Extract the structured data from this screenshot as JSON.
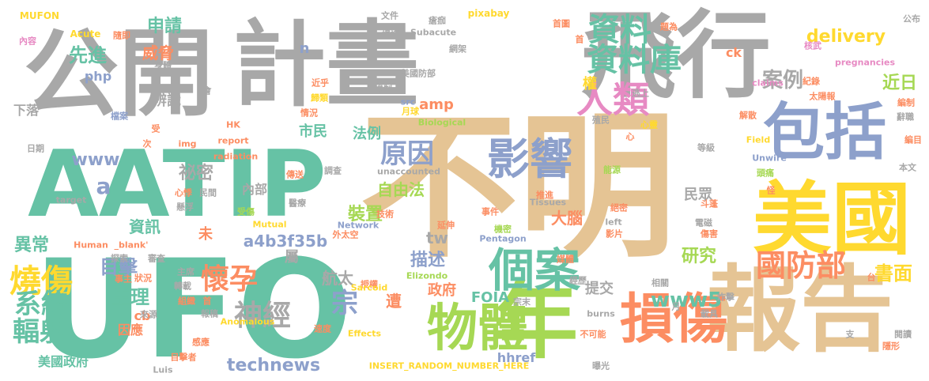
{
  "colors": {
    "gray": "#a8a8a8",
    "teal": "#66c2a5",
    "tan": "#e5c494",
    "lime": "#a6d854",
    "orange": "#fc8d62",
    "yellow": "#ffd92f",
    "blue": "#8da0cb",
    "pink": "#e78ac3"
  },
  "words": [
    "公開",
    "計畫",
    "飛行",
    "不明",
    "UFO",
    "AATIP",
    "美國",
    "報告",
    "年",
    "物體",
    "損傷",
    "包括",
    "個案",
    "影響",
    "資料",
    "資料庫",
    "人類",
    "國防部",
    "燒傷",
    "懷孕",
    "系統",
    "輻射",
    "原因",
    "宗",
    "神經",
    "www5",
    "technews",
    "目擊",
    "生理",
    "案例",
    "書面",
    "先進",
    "威脅",
    "申請",
    "delivery",
    "近日",
    "研究",
    "描述",
    "裝置",
    "祕密",
    "異常",
    "資訊",
    "航太",
    "自由法",
    "法例",
    "市民",
    "a4b3f35b",
    "FOIA",
    "提交",
    "大腦",
    "政府",
    "遭",
    "內部",
    "民眾",
    "美國政府",
    "因應",
    "權",
    "amp",
    "php",
    "辨識",
    "下落",
    "www",
    "a",
    "n",
    "tw",
    "hhref",
    "cb",
    "ck",
    "未",
    "屬",
    "MUFON",
    "內容",
    "Acute",
    "隨即",
    "身體",
    "受",
    "日期",
    "檔案",
    "文件",
    "提議",
    "Subacute",
    "pixabay",
    "首圖",
    "題為",
    "公布",
    "核武",
    "機制",
    "網架",
    "美國防部",
    "歸類",
    "近乎",
    "src",
    "情況",
    "月球",
    "Biological",
    "殖民",
    "逃上",
    "太陽報",
    "紀錄",
    "claims",
    "pregnancies",
    "編制",
    "辭職",
    "編目",
    "解散",
    "心靈",
    "img",
    "HK",
    "次",
    "report",
    "radiation",
    "傳送",
    "調查",
    "unaccounted",
    "等級",
    "Field",
    "Unwire",
    "本文",
    "頭痛",
    "怪",
    "斗蓬",
    "能源",
    "絕密",
    "left",
    "影片",
    "電磁",
    "傷害",
    "相關",
    "台",
    "經歷",
    "主席",
    "轉載",
    "報稿",
    "組織",
    "來源",
    "目擊者",
    "Luis",
    "感應",
    "事主",
    "狀況",
    "探索",
    "審查",
    "Human",
    "_blank'",
    "Mutual",
    "Network",
    "醫療",
    "技術",
    "推進",
    "Tissues",
    "機密",
    "Pentagon",
    "延伸",
    "外太空",
    "Elizondo",
    "媒體",
    "宗末",
    "burns",
    "Anomalous",
    "Effects",
    "速度",
    "INSERT_RANDOM_NUMBER_HERE",
    "不可能",
    "曝光",
    "載具",
    "炸擊",
    "隱形",
    "閱讀",
    "支",
    "月",
    "首",
    "target",
    "心悸",
    "懸浮",
    "受傷",
    "民間",
    "事件",
    "瘡痂",
    "授權",
    "Sarcoid",
    "首",
    "會",
    "心"
  ]
}
